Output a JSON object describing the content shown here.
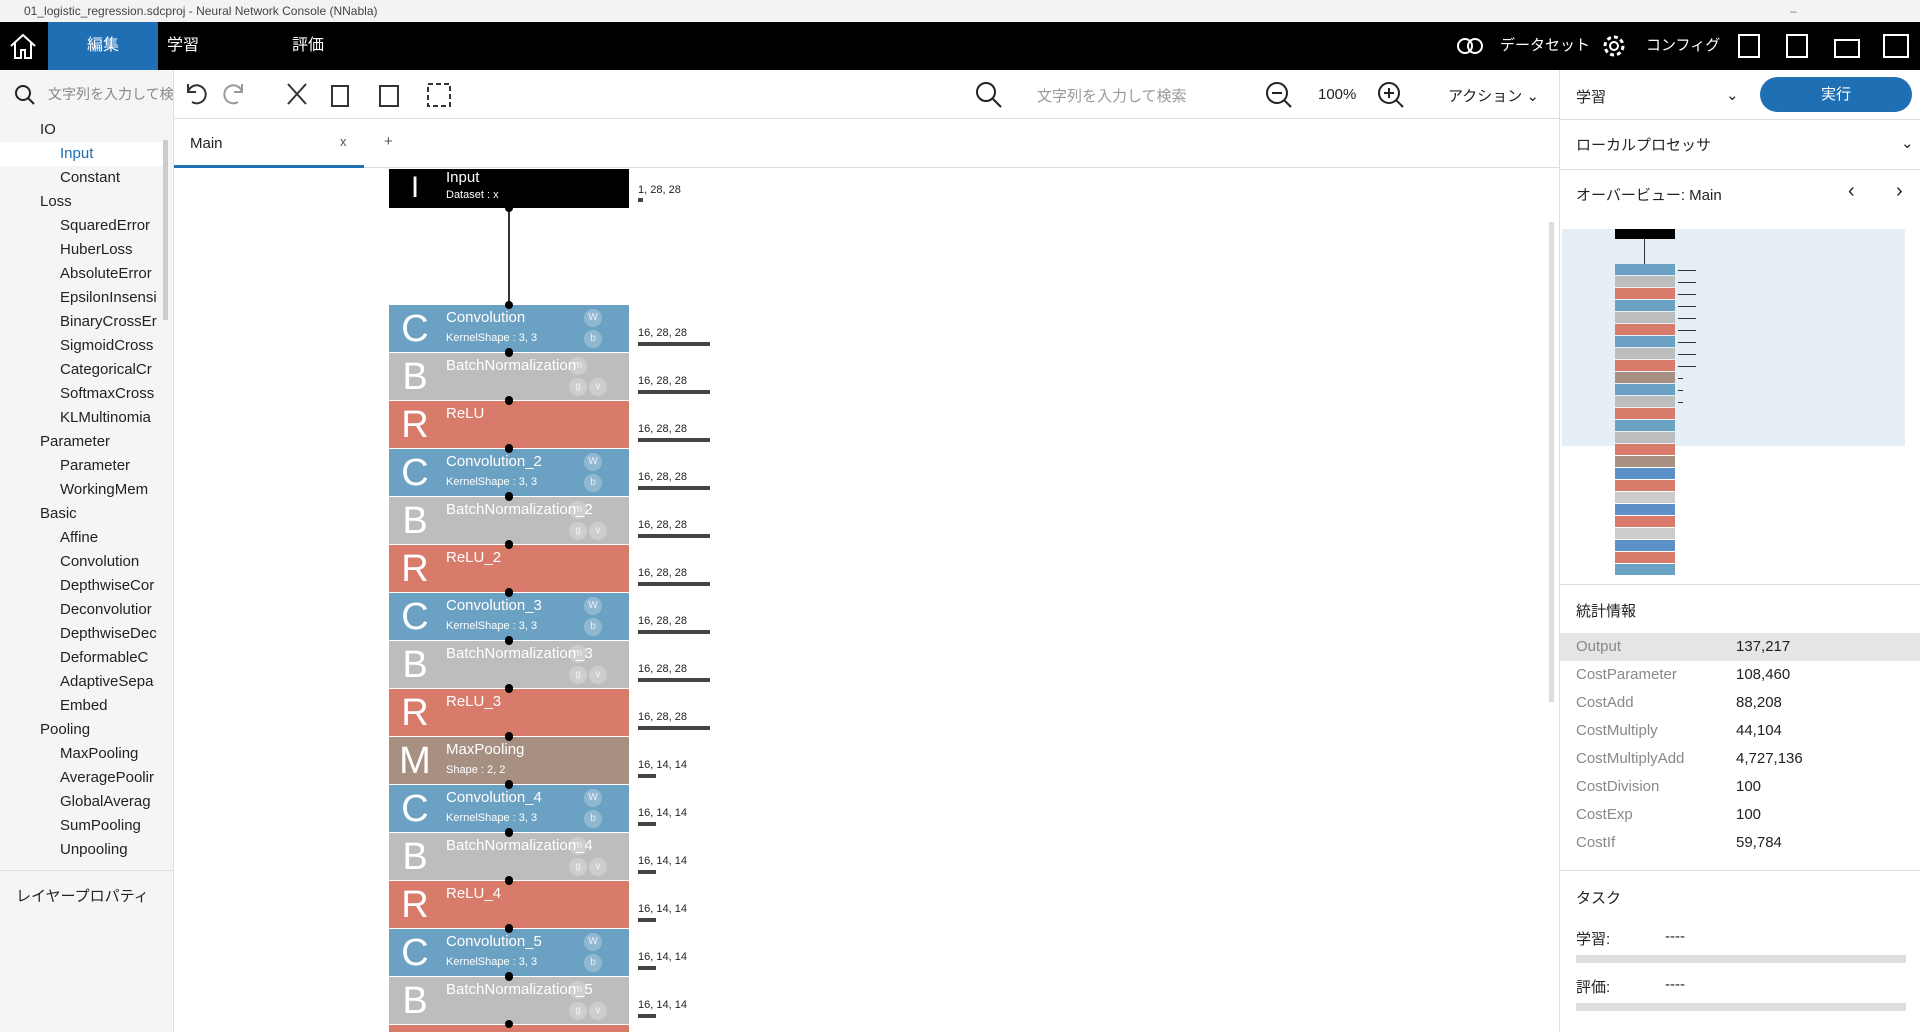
{
  "window": {
    "title": "01_logistic_regression.sdcproj - Neural Network Console (NNabla)"
  },
  "menu": {
    "tabs": [
      "編集",
      "学習",
      "評価"
    ],
    "dataset": "データセット",
    "config": "コンフィグ"
  },
  "toolbar": {
    "search_left": "文字列を入力して検",
    "search_placeholder": "文字列を入力して検索",
    "zoom": "100%",
    "action": "アクション"
  },
  "layer_tree": {
    "groups": [
      {
        "name": "IO",
        "items": [
          "Input",
          "Constant"
        ]
      },
      {
        "name": "Loss",
        "items": [
          "SquaredError",
          "HuberLoss",
          "AbsoluteError",
          "EpsilonInsensi",
          "BinaryCrossEr",
          "SigmoidCross",
          "CategoricalCr",
          "SoftmaxCross",
          "KLMultinomia"
        ]
      },
      {
        "name": "Parameter",
        "items": [
          "Parameter",
          "WorkingMem"
        ]
      },
      {
        "name": "Basic",
        "items": [
          "Affine",
          "Convolution",
          "DepthwiseCor",
          "Deconvolutior",
          "DepthwiseDec",
          "DeformableC",
          "AdaptiveSepa",
          "Embed"
        ]
      },
      {
        "name": "Pooling",
        "items": [
          "MaxPooling",
          "AveragePoolir",
          "GlobalAverag",
          "SumPooling",
          "Unpooling"
        ]
      }
    ],
    "selected": "Input"
  },
  "properties_title": "レイヤープロパティ",
  "editor": {
    "tab": "Main",
    "tab_close": "x",
    "add_tab": "+",
    "layers": [
      {
        "letter": "I",
        "name": "Input",
        "detail": "Dataset : x",
        "params": [],
        "output": "1, 28, 28"
      },
      {
        "letter": "C",
        "name": "Convolution",
        "detail": "KernelShape : 3, 3",
        "params": [
          "W",
          "b"
        ],
        "output": "16, 28, 28"
      },
      {
        "letter": "B",
        "name": "BatchNormalization",
        "detail": "",
        "params": [
          "m",
          "g",
          "v"
        ],
        "output": "16, 28, 28"
      },
      {
        "letter": "R",
        "name": "ReLU",
        "detail": "",
        "params": [],
        "output": "16, 28, 28"
      },
      {
        "letter": "C",
        "name": "Convolution_2",
        "detail": "KernelShape : 3, 3",
        "params": [
          "W",
          "b"
        ],
        "output": "16, 28, 28"
      },
      {
        "letter": "B",
        "name": "BatchNormalization_2",
        "detail": "",
        "params": [
          "m",
          "g",
          "v"
        ],
        "output": "16, 28, 28"
      },
      {
        "letter": "R",
        "name": "ReLU_2",
        "detail": "",
        "params": [],
        "output": "16, 28, 28"
      },
      {
        "letter": "C",
        "name": "Convolution_3",
        "detail": "KernelShape : 3, 3",
        "params": [
          "W",
          "b"
        ],
        "output": "16, 28, 28"
      },
      {
        "letter": "B",
        "name": "BatchNormalization_3",
        "detail": "",
        "params": [
          "m",
          "g",
          "v"
        ],
        "output": "16, 28, 28"
      },
      {
        "letter": "R",
        "name": "ReLU_3",
        "detail": "",
        "params": [],
        "output": "16, 28, 28"
      },
      {
        "letter": "M",
        "name": "MaxPooling",
        "detail": "Shape : 2, 2",
        "params": [],
        "output": "16, 14, 14"
      },
      {
        "letter": "C",
        "name": "Convolution_4",
        "detail": "KernelShape : 3, 3",
        "params": [
          "W",
          "b"
        ],
        "output": "16, 14, 14"
      },
      {
        "letter": "B",
        "name": "BatchNormalization_4",
        "detail": "",
        "params": [
          "m",
          "g",
          "v"
        ],
        "output": "16, 14, 14"
      },
      {
        "letter": "R",
        "name": "ReLU_4",
        "detail": "",
        "params": [],
        "output": "16, 14, 14"
      },
      {
        "letter": "C",
        "name": "Convolution_5",
        "detail": "KernelShape : 3, 3",
        "params": [
          "W",
          "b"
        ],
        "output": "16, 14, 14"
      },
      {
        "letter": "B",
        "name": "BatchNormalization_5",
        "detail": "",
        "params": [
          "m",
          "g",
          "v"
        ],
        "output": "16, 14, 14"
      }
    ]
  },
  "side": {
    "mode": "学習",
    "run": "実行",
    "processor": "ローカルプロセッサ",
    "overview": "オーバービュー: Main",
    "stats_title": "統計情報",
    "stats": [
      [
        "Output",
        "137,217"
      ],
      [
        "CostParameter",
        "108,460"
      ],
      [
        "CostAdd",
        "88,208"
      ],
      [
        "CostMultiply",
        "44,104"
      ],
      [
        "CostMultiplyAdd",
        "4,727,136"
      ],
      [
        "CostDivision",
        "100"
      ],
      [
        "CostExp",
        "100"
      ],
      [
        "CostIf",
        "59,784"
      ]
    ],
    "tasks_title": "タスク",
    "tasks": [
      [
        "学習:",
        "----"
      ],
      [
        "評価:",
        "----"
      ]
    ]
  }
}
